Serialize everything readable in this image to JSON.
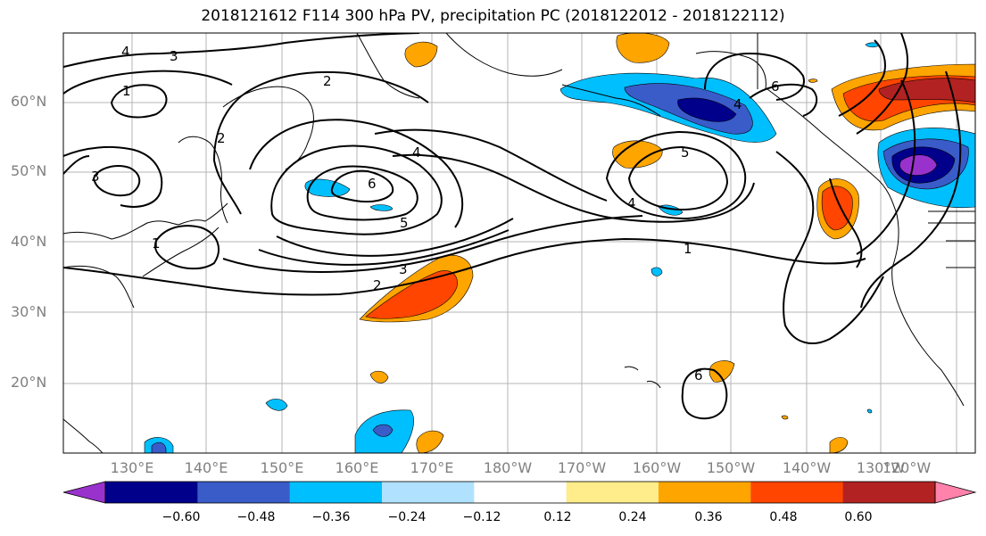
{
  "title": "2018121612 F114 300 hPa PV, precipitation PC (2018122012 - 2018122112)",
  "map": {
    "lat_labels": [
      "60°N",
      "50°N",
      "40°N",
      "30°N",
      "20°N"
    ],
    "lon_labels": [
      "130°E",
      "140°E",
      "150°E",
      "160°E",
      "170°E",
      "180°W",
      "170°W",
      "160°W",
      "150°W",
      "140°W",
      "130°W",
      "120°W"
    ],
    "contour_color": "#000000",
    "contour_labels": [
      "4",
      "3",
      "1",
      "2",
      "3",
      "2",
      "4",
      "6",
      "5",
      "3",
      "2",
      "1",
      "4",
      "6",
      "5",
      "1",
      "4",
      "6"
    ]
  },
  "colorbar": {
    "colors": [
      "#9932cc",
      "#00008b",
      "#3a5cc9",
      "#00bfff",
      "#b0e2ff",
      "#ffffff",
      "#ffec8b",
      "#ffa500",
      "#ff4500",
      "#b22222",
      "#ff82ab"
    ],
    "tick_labels": [
      "−0.60",
      "−0.48",
      "−0.36",
      "−0.24",
      "−0.12",
      "0.12",
      "0.24",
      "0.36",
      "0.48",
      "0.60"
    ]
  }
}
